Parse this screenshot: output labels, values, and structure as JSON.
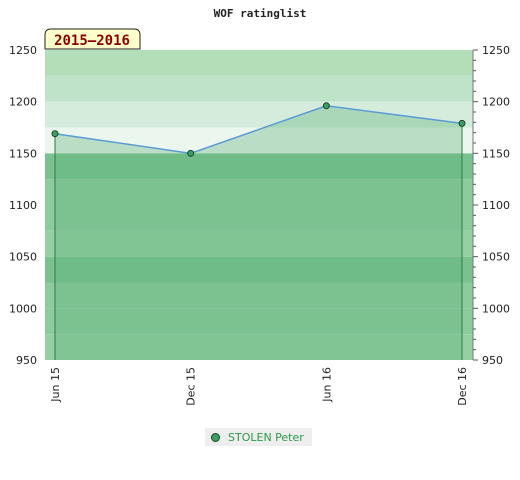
{
  "chart_data": {
    "type": "line",
    "title": "WOF ratinglist",
    "season": "2015–2016",
    "categories": [
      "Jun 15",
      "Dec 15",
      "Jun 16",
      "Dec 16"
    ],
    "series": [
      {
        "name": "STOLEN Peter",
        "values": [
          1169,
          1150,
          1196,
          1179
        ]
      }
    ],
    "ylim": [
      950,
      1250
    ],
    "yticks": [
      950,
      1000,
      1050,
      1100,
      1150,
      1200,
      1250
    ],
    "grid": true,
    "legend_position": "bottom-center",
    "colors": {
      "line": "#5b9bd5",
      "marker_fill": "#3f9e63",
      "marker_stroke": "#124a25",
      "area_fill": "#5fb377",
      "legend_text": "#2a9a49",
      "season_label": "#8b0000",
      "season_bg": "#ffffcc"
    }
  }
}
